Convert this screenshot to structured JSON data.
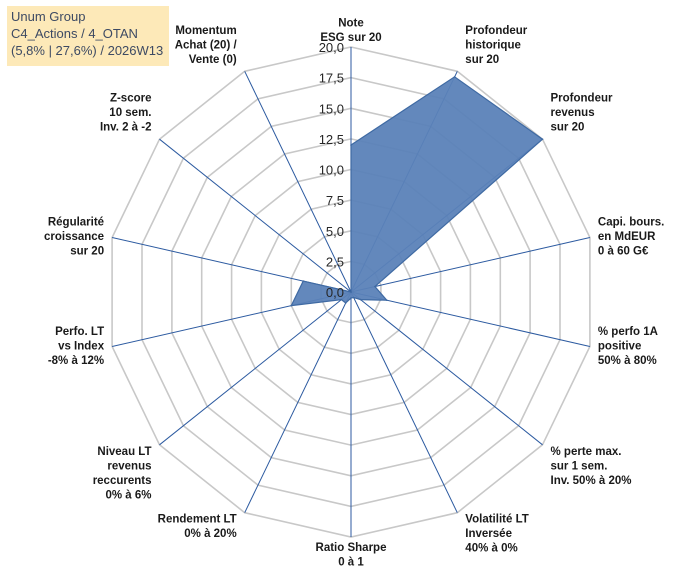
{
  "info": {
    "company": "Unum Group",
    "portfolio": "C4_Actions / 4_OTAN",
    "stats": "(5,8% | 27,6%) / 2026W13"
  },
  "colors": {
    "fill": "#5b82b8",
    "stroke": "#3f6aa3",
    "grid": "#c8c8c8",
    "spoke": "#2c5aa0",
    "info_bg": "#fde9b8"
  },
  "chart_data": {
    "type": "radar",
    "scale": {
      "min": 0,
      "max": 20,
      "step": 2.5
    },
    "tick_labels": [
      "0,0",
      "2,5",
      "5,0",
      "7,5",
      "10,0",
      "12,5",
      "15,0",
      "17,5",
      "20,0"
    ],
    "axes": [
      {
        "label": [
          "Note",
          "ESG sur 20"
        ],
        "value": 12
      },
      {
        "label": [
          "Profondeur",
          "historique",
          "sur 20"
        ],
        "value": 19.5
      },
      {
        "label": [
          "Profondeur",
          "revenus",
          "sur 20"
        ],
        "value": 20
      },
      {
        "label": [
          "Capi. bours.",
          "en MdEUR",
          "0 à 60 G€"
        ],
        "value": 2
      },
      {
        "label": [
          "% perfo 1A",
          "positive",
          "50% à 80%"
        ],
        "value": 3
      },
      {
        "label": [
          "% perte max.",
          "sur 1 sem.",
          "Inv. 50% à 20%"
        ],
        "value": 1
      },
      {
        "label": [
          "Volatilité LT",
          "Inversée",
          "40% à 0%"
        ],
        "value": 0.5
      },
      {
        "label": [
          "Ratio Sharpe",
          "0 à 1"
        ],
        "value": 0.5
      },
      {
        "label": [
          "Rendement LT",
          "0% à 20%"
        ],
        "value": 1
      },
      {
        "label": [
          "Niveau LT",
          "revenus",
          "reccurents",
          "0% à 6%"
        ],
        "value": 1
      },
      {
        "label": [
          "Perfo. LT",
          "vs Index",
          "-8% à 12%"
        ],
        "value": 5
      },
      {
        "label": [
          "Régularité",
          "croissance",
          "sur 20"
        ],
        "value": 4
      },
      {
        "label": [
          "Z-score",
          "10 sem.",
          "Inv. 2 à -2"
        ],
        "value": 0
      },
      {
        "label": [
          "Momentum",
          "Achat (20) /",
          "Vente (0)"
        ],
        "value": 0
      }
    ]
  }
}
